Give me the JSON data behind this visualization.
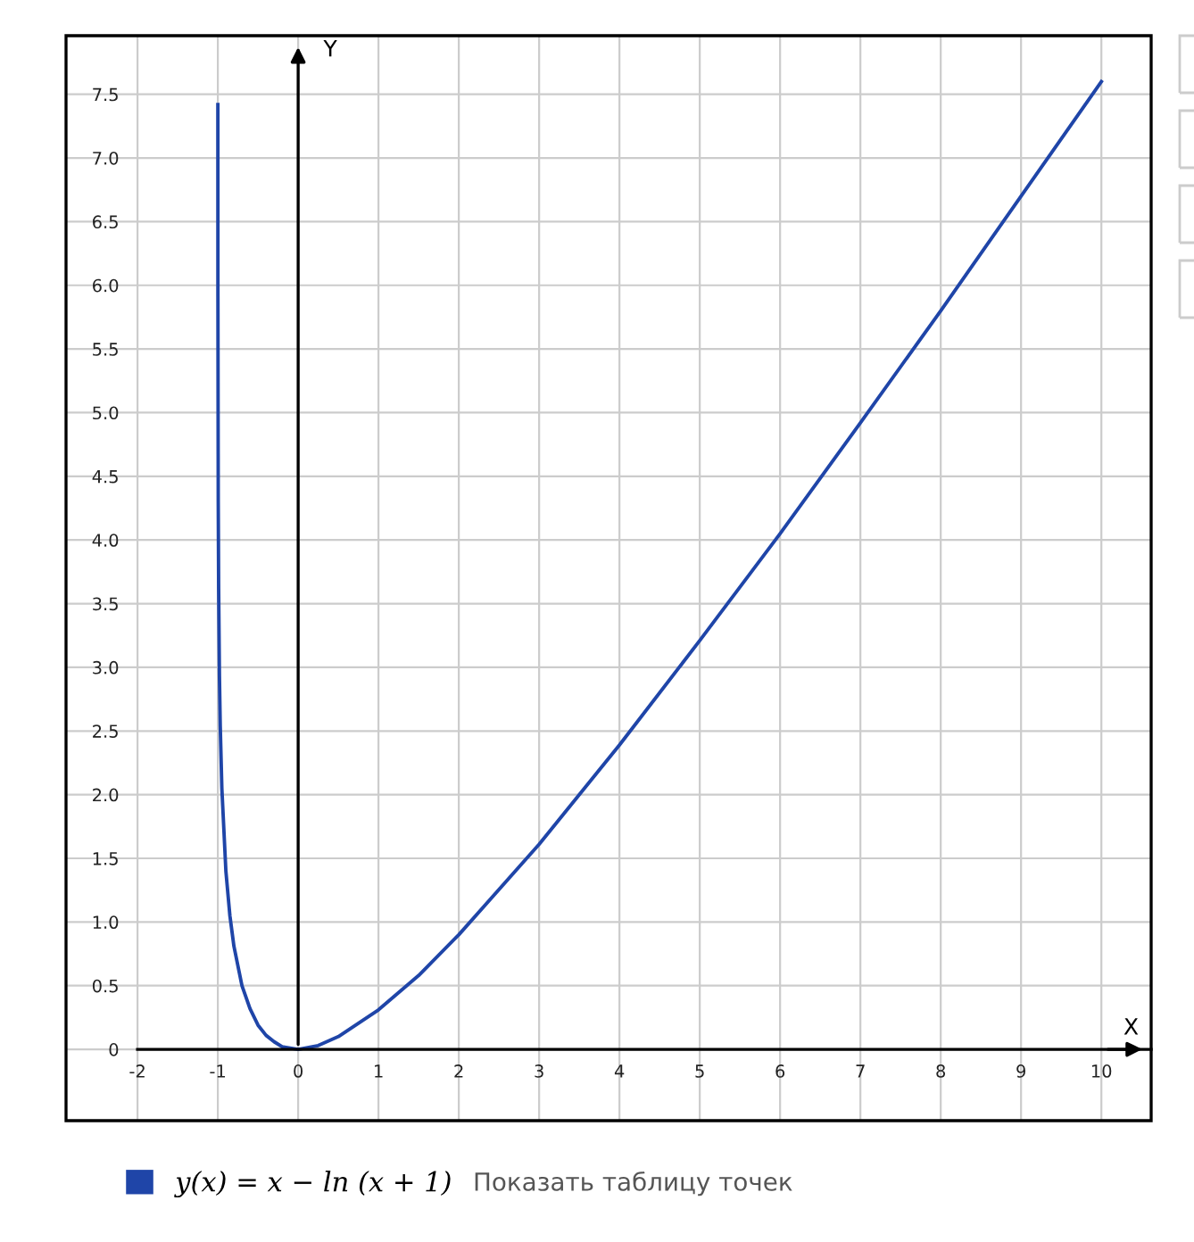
{
  "chart_data": {
    "type": "line",
    "xlabel": "X",
    "ylabel": "Y",
    "xlim": [
      -2.89,
      10.62
    ],
    "ylim": [
      -0.56,
      7.96
    ],
    "xticks": [
      -2,
      -1,
      0,
      1,
      2,
      3,
      4,
      5,
      6,
      7,
      8,
      9,
      10
    ],
    "yticks": [
      0,
      0.5,
      {
        "value": 1,
        "label": "1.0"
      },
      1.5,
      {
        "value": 2,
        "label": "2.0"
      },
      2.5,
      {
        "value": 3,
        "label": "3.0"
      },
      3.5,
      {
        "value": 4,
        "label": "4.0"
      },
      4.5,
      {
        "value": 5,
        "label": "5.0"
      },
      5.5,
      {
        "value": 6,
        "label": "6.0"
      },
      6.5,
      {
        "value": 7,
        "label": "7.0"
      },
      7.5
    ],
    "grid": true,
    "legend": "bottom",
    "marker": "none",
    "line_style": "solid",
    "annotations": [
      "Показать таблицу точек"
    ],
    "series": [
      {
        "name": "y(x) = x − ln (x + 1)",
        "color": "#1f45a8",
        "x": [
          -0.9998,
          -0.999,
          -0.995,
          -0.99,
          -0.98,
          -0.97,
          -0.95,
          -0.9,
          -0.85,
          -0.8,
          -0.7,
          -0.6,
          -0.5,
          -0.4,
          -0.3,
          -0.2,
          -0.1,
          0,
          0.25,
          0.5,
          1,
          1.5,
          2,
          3,
          4,
          5,
          6,
          7,
          8,
          9,
          10
        ],
        "values": [
          7.42,
          5.91,
          4.3,
          3.62,
          2.93,
          2.54,
          2.05,
          1.4,
          1.05,
          0.81,
          0.5,
          0.32,
          0.19,
          0.11,
          0.06,
          0.02,
          0.01,
          0,
          0.03,
          0.1,
          0.31,
          0.58,
          0.9,
          1.61,
          2.39,
          3.21,
          4.05,
          4.92,
          5.8,
          6.7,
          7.6
        ]
      }
    ]
  }
}
